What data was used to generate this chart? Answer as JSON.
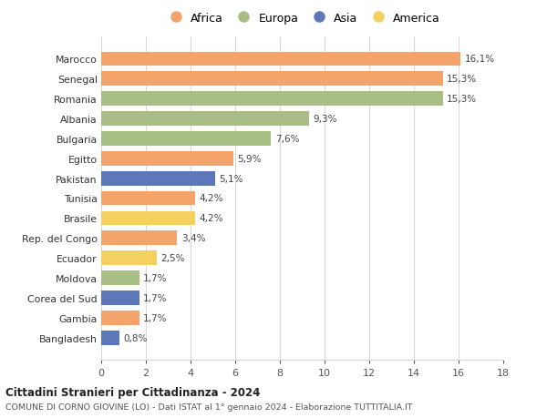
{
  "countries": [
    "Marocco",
    "Senegal",
    "Romania",
    "Albania",
    "Bulgaria",
    "Egitto",
    "Pakistan",
    "Tunisia",
    "Brasile",
    "Rep. del Congo",
    "Ecuador",
    "Moldova",
    "Corea del Sud",
    "Gambia",
    "Bangladesh"
  ],
  "values": [
    16.1,
    15.3,
    15.3,
    9.3,
    7.6,
    5.9,
    5.1,
    4.2,
    4.2,
    3.4,
    2.5,
    1.7,
    1.7,
    1.7,
    0.8
  ],
  "labels": [
    "16,1%",
    "15,3%",
    "15,3%",
    "9,3%",
    "7,6%",
    "5,9%",
    "5,1%",
    "4,2%",
    "4,2%",
    "3,4%",
    "2,5%",
    "1,7%",
    "1,7%",
    "1,7%",
    "0,8%"
  ],
  "continents": [
    "Africa",
    "Africa",
    "Europa",
    "Europa",
    "Europa",
    "Africa",
    "Asia",
    "Africa",
    "America",
    "Africa",
    "America",
    "Europa",
    "Asia",
    "Africa",
    "Asia"
  ],
  "colors": {
    "Africa": "#F4A46A",
    "Europa": "#A8BE84",
    "Asia": "#5C78B8",
    "America": "#F5D060"
  },
  "legend_colors": {
    "Africa": "#F4A46A",
    "Europa": "#A8BE84",
    "Asia": "#5C78B8",
    "America": "#F5D060"
  },
  "title1": "Cittadini Stranieri per Cittadinanza - 2024",
  "title2": "COMUNE DI CORNO GIOVINE (LO) - Dati ISTAT al 1° gennaio 2024 - Elaborazione TUTTITALIA.IT",
  "xlim": [
    0,
    18
  ],
  "xticks": [
    0,
    2,
    4,
    6,
    8,
    10,
    12,
    14,
    16,
    18
  ],
  "background_color": "#ffffff",
  "grid_color": "#d8d8d8"
}
